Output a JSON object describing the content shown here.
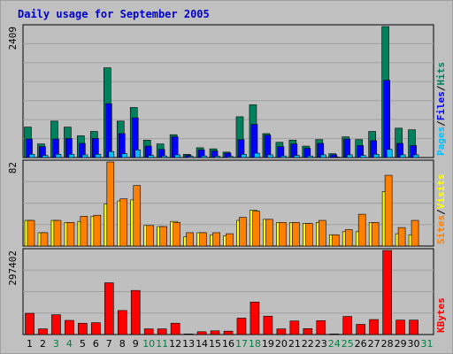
{
  "title": "Daily usage for September 2005",
  "colors": {
    "title": "#0000cc",
    "background": "#bfbfbf",
    "grid": "#a0a0a0",
    "hits": "#00805c",
    "files": "#0000ff",
    "pages": "#00c0ff",
    "visits": "#ffff00",
    "sites": "#ff8000",
    "kbytes": "#ff0000",
    "weekday_label": "#000000",
    "weekend_label": "#008040"
  },
  "chart_data": [
    {
      "type": "bar",
      "panel": "hits-files-pages",
      "y_axis_label": "2409",
      "ylim": [
        0,
        2409
      ],
      "grid": true,
      "legend": [
        "Pages",
        "/",
        "Files",
        "/",
        "Hits"
      ],
      "categories": [
        "1",
        "2",
        "3",
        "4",
        "5",
        "6",
        "7",
        "8",
        "9",
        "10",
        "11",
        "12",
        "13",
        "14",
        "15",
        "16",
        "17",
        "18",
        "19",
        "20",
        "21",
        "22",
        "23",
        "24",
        "25",
        "26",
        "27",
        "28",
        "29",
        "30",
        "31"
      ],
      "series": [
        {
          "name": "Hits",
          "values": [
            560,
            250,
            670,
            560,
            400,
            480,
            1650,
            670,
            920,
            320,
            250,
            420,
            60,
            180,
            160,
            100,
            750,
            970,
            440,
            280,
            320,
            210,
            330,
            70,
            380,
            330,
            480,
            2409,
            540,
            510,
            0
          ]
        },
        {
          "name": "Files",
          "values": [
            340,
            200,
            340,
            350,
            260,
            350,
            990,
            440,
            730,
            210,
            150,
            380,
            40,
            140,
            120,
            80,
            330,
            610,
            410,
            200,
            250,
            170,
            260,
            50,
            340,
            220,
            310,
            1420,
            260,
            220,
            0
          ]
        },
        {
          "name": "Pages",
          "values": [
            60,
            40,
            60,
            60,
            50,
            60,
            110,
            70,
            140,
            40,
            30,
            50,
            20,
            30,
            25,
            20,
            60,
            80,
            50,
            30,
            40,
            30,
            50,
            10,
            50,
            40,
            60,
            150,
            50,
            50,
            0
          ]
        }
      ]
    },
    {
      "type": "bar",
      "panel": "visits-sites",
      "y_axis_label": "82",
      "ylim": [
        0,
        82
      ],
      "grid": true,
      "legend": [
        "Sites",
        "/",
        "Visits"
      ],
      "categories": [
        "1",
        "2",
        "3",
        "4",
        "5",
        "6",
        "7",
        "8",
        "9",
        "10",
        "11",
        "12",
        "13",
        "14",
        "15",
        "16",
        "17",
        "18",
        "19",
        "20",
        "21",
        "22",
        "23",
        "24",
        "25",
        "26",
        "27",
        "28",
        "29",
        "30",
        "31"
      ],
      "series": [
        {
          "name": "Visits",
          "values": [
            25,
            13,
            25,
            23,
            24,
            29,
            41,
            44,
            45,
            20,
            19,
            24,
            9,
            13,
            11,
            10,
            25,
            35,
            26,
            23,
            23,
            22,
            23,
            11,
            14,
            14,
            23,
            53,
            12,
            11,
            0
          ]
        },
        {
          "name": "Sites",
          "values": [
            25,
            13,
            25,
            23,
            29,
            30,
            82,
            46,
            59,
            20,
            19,
            23,
            13,
            13,
            13,
            12,
            28,
            34,
            26,
            23,
            23,
            22,
            25,
            11,
            16,
            31,
            23,
            69,
            18,
            25,
            0
          ]
        }
      ]
    },
    {
      "type": "bar",
      "panel": "kbytes",
      "y_axis_label": "297402",
      "ylim": [
        0,
        297402
      ],
      "grid": true,
      "legend": [
        "KBytes"
      ],
      "categories": [
        "1",
        "2",
        "3",
        "4",
        "5",
        "6",
        "7",
        "8",
        "9",
        "10",
        "11",
        "12",
        "13",
        "14",
        "15",
        "16",
        "17",
        "18",
        "19",
        "20",
        "21",
        "22",
        "23",
        "24",
        "25",
        "26",
        "27",
        "28",
        "29",
        "30",
        "31"
      ],
      "series": [
        {
          "name": "KBytes",
          "values": [
            75000,
            20000,
            70000,
            50000,
            40000,
            42000,
            183000,
            85000,
            156000,
            20000,
            20000,
            40000,
            2000,
            10000,
            13000,
            12000,
            58000,
            115000,
            65000,
            20000,
            48000,
            21000,
            49000,
            2000,
            64000,
            36000,
            53000,
            297402,
            51000,
            51000,
            0
          ]
        }
      ]
    }
  ]
}
